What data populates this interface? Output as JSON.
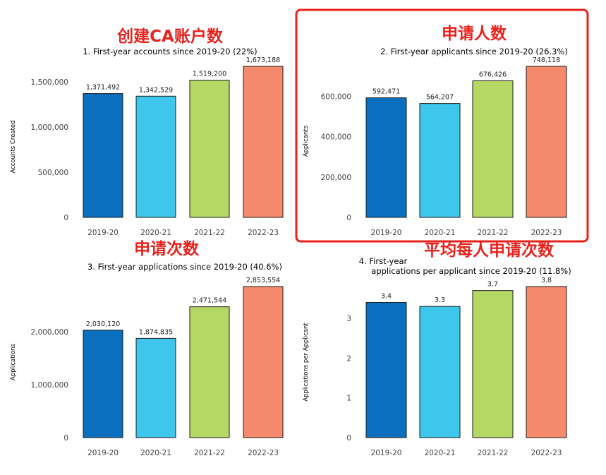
{
  "colors": {
    "bars": [
      "#0a6fbf",
      "#3ec6ec",
      "#b5d865",
      "#f4896b"
    ],
    "annotation": "#e8221c",
    "highlight_box": "#e8221c",
    "bar_outline": "#1a1a1a",
    "text": "#222222"
  },
  "chart_data": [
    {
      "type": "bar",
      "annotation": "创建CA账户数",
      "title": "1. First-year accounts since 2019-20 (22%)",
      "ylabel": "Accounts Created",
      "categories": [
        "2019-20",
        "2020-21",
        "2021-22",
        "2022-23"
      ],
      "values": [
        1371492,
        1342529,
        1519200,
        1673188
      ],
      "value_labels": [
        "1,371,492",
        "1,342,529",
        "1,519,200",
        "1,673,188"
      ],
      "yticks": [
        0,
        500000,
        1000000,
        1500000
      ],
      "ytick_labels": [
        "0",
        "500,000",
        "1,000,000",
        "1,500,000"
      ],
      "ylim": [
        0,
        1673188
      ],
      "highlighted": false
    },
    {
      "type": "bar",
      "annotation": "申请人数",
      "title": "2. First-year applicants since 2019-20 (26.3%)",
      "ylabel": "Applicants",
      "categories": [
        "2019-20",
        "2020-21",
        "2021-22",
        "2022-23"
      ],
      "values": [
        592471,
        564207,
        676426,
        748118
      ],
      "value_labels": [
        "592,471",
        "564,207",
        "676,426",
        "748,118"
      ],
      "yticks": [
        0,
        200000,
        400000,
        600000
      ],
      "ytick_labels": [
        "0",
        "200,000",
        "400,000",
        "600,000"
      ],
      "ylim": [
        0,
        748118
      ],
      "highlighted": true
    },
    {
      "type": "bar",
      "annotation": "申请次数",
      "title": "3. First-year applications since 2019-20 (40.6%)",
      "ylabel": "Applications",
      "categories": [
        "2019-20",
        "2020-21",
        "2021-22",
        "2022-23"
      ],
      "values": [
        2030120,
        1874835,
        2471544,
        2853554
      ],
      "value_labels": [
        "2,030,120",
        "1,874,835",
        "2,471,544",
        "2,853,554"
      ],
      "yticks": [
        0,
        1000000,
        2000000
      ],
      "ytick_labels": [
        "0",
        "1,000,000",
        "2,000,000"
      ],
      "ylim": [
        0,
        2853554
      ],
      "highlighted": false
    },
    {
      "type": "bar",
      "annotation": "平均每人申请次数",
      "title": "4. First-year applications per applicant since 2019-20 (11.8%)",
      "title_lines": [
        "4. First-year",
        "applications per applicant since 2019-20 (11.8%)"
      ],
      "ylabel": "Applications per Applicant",
      "categories": [
        "2019-20",
        "2020-21",
        "2021-22",
        "2022-23"
      ],
      "values": [
        3.4,
        3.3,
        3.7,
        3.8
      ],
      "value_labels": [
        "3.4",
        "3.3",
        "3.7",
        "3.8"
      ],
      "yticks": [
        0,
        1,
        2,
        3
      ],
      "ytick_labels": [
        "0",
        "1",
        "2",
        "3"
      ],
      "ylim": [
        0,
        3.8
      ],
      "highlighted": false
    }
  ]
}
